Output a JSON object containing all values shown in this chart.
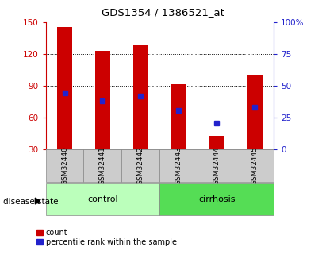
{
  "title": "GDS1354 / 1386521_at",
  "samples": [
    "GSM32440",
    "GSM32441",
    "GSM32442",
    "GSM32443",
    "GSM32444",
    "GSM32445"
  ],
  "bar_heights": [
    145,
    123,
    128,
    91,
    43,
    100
  ],
  "blue_markers": [
    83,
    76,
    80,
    67,
    55,
    70
  ],
  "bar_bottom": 30,
  "left_ylim": [
    30,
    150
  ],
  "right_ylim": [
    0,
    100
  ],
  "left_yticks": [
    30,
    60,
    90,
    120,
    150
  ],
  "right_yticks": [
    0,
    25,
    50,
    75,
    100
  ],
  "right_yticklabels": [
    "0",
    "25",
    "50",
    "75",
    "100%"
  ],
  "bar_color": "#cc0000",
  "blue_color": "#2222cc",
  "groups": [
    {
      "label": "control",
      "indices": [
        0,
        1,
        2
      ],
      "color": "#bbffbb"
    },
    {
      "label": "cirrhosis",
      "indices": [
        3,
        4,
        5
      ],
      "color": "#55dd55"
    }
  ],
  "disease_state_text": "disease state",
  "legend_count_label": "count",
  "legend_pct_label": "percentile rank within the sample",
  "bar_width": 0.4,
  "tick_label_color_left": "#cc0000",
  "tick_label_color_right": "#2222cc",
  "sample_box_color": "#cccccc",
  "sample_box_edge": "#888888"
}
